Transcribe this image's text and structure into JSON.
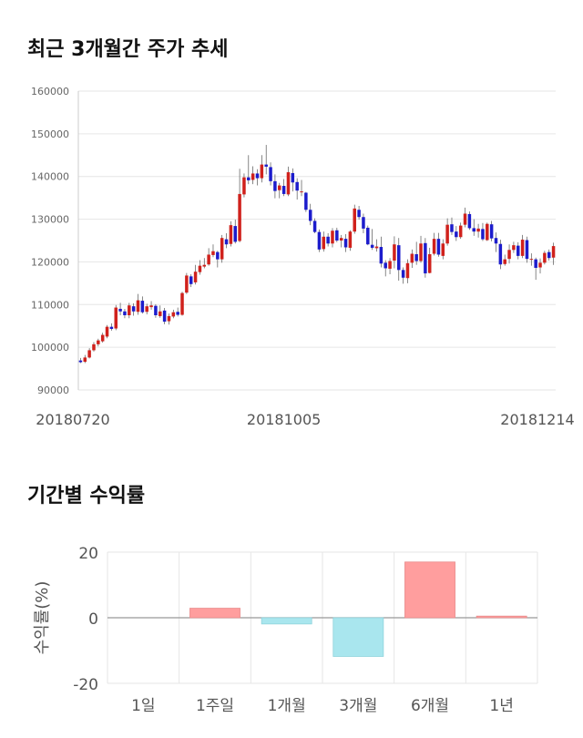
{
  "section1_title": "최근 3개월간 주가 추세",
  "section2_title": "기간별 수익률",
  "colors": {
    "up": "#d0211c",
    "down": "#1c1ccc",
    "bar_pos": "#ff9e9e",
    "bar_neg": "#a9e6ee",
    "grid": "#e6e6e6"
  },
  "chart_data": [
    {
      "type": "candlestick",
      "title": "최근 3개월간 주가 추세",
      "ylim": [
        90000,
        160000
      ],
      "y_ticks": [
        "160000",
        "150000",
        "140000",
        "130000",
        "120000",
        "110000",
        "100000",
        "90000"
      ],
      "x_tick_labels": [
        "20180720",
        "20181005",
        "20181214"
      ],
      "grid": true,
      "candles": [
        [
          96900,
          96500,
          97500,
          96300
        ],
        [
          96600,
          97600,
          98200,
          96300
        ],
        [
          97600,
          99300,
          99800,
          97400
        ],
        [
          99300,
          100700,
          101200,
          99000
        ],
        [
          100700,
          101600,
          102000,
          100200
        ],
        [
          101400,
          102900,
          103400,
          101100
        ],
        [
          102500,
          104800,
          105200,
          102100
        ],
        [
          104800,
          104300,
          105600,
          103900
        ],
        [
          104400,
          109300,
          109900,
          104000
        ],
        [
          109000,
          108400,
          110400,
          107500
        ],
        [
          108400,
          107500,
          109000,
          106800
        ],
        [
          107500,
          109800,
          110400,
          106800
        ],
        [
          109600,
          108400,
          110300,
          107400
        ],
        [
          108300,
          111000,
          112500,
          107600
        ],
        [
          110900,
          108200,
          111900,
          107900
        ],
        [
          108300,
          109600,
          110200,
          107700
        ],
        [
          109400,
          109800,
          110800,
          108800
        ],
        [
          109700,
          107500,
          110100,
          106900
        ],
        [
          107300,
          108400,
          109800,
          106900
        ],
        [
          108600,
          106000,
          109200,
          105400
        ],
        [
          106100,
          107300,
          107900,
          105300
        ],
        [
          107200,
          108200,
          108800,
          106800
        ],
        [
          108300,
          107600,
          109300,
          107200
        ],
        [
          107600,
          112700,
          113000,
          107400
        ],
        [
          112800,
          116800,
          117400,
          112500
        ],
        [
          116600,
          114800,
          117100,
          114100
        ],
        [
          115200,
          117700,
          119300,
          114700
        ],
        [
          117600,
          119100,
          120400,
          117000
        ],
        [
          118900,
          119300,
          120900,
          118500
        ],
        [
          119400,
          121700,
          123200,
          119100
        ],
        [
          121600,
          122500,
          124100,
          121100
        ],
        [
          122300,
          120600,
          122600,
          118700
        ],
        [
          120600,
          125600,
          126300,
          119800
        ],
        [
          125300,
          124100,
          126700,
          123200
        ],
        [
          124200,
          128600,
          129500,
          123600
        ],
        [
          128400,
          124700,
          129900,
          124300
        ],
        [
          124900,
          135900,
          141800,
          124600
        ],
        [
          135800,
          139800,
          140700,
          135100
        ],
        [
          139800,
          139100,
          145000,
          138200
        ],
        [
          139200,
          140700,
          142400,
          138200
        ],
        [
          140700,
          139600,
          141700,
          137900
        ],
        [
          139600,
          142800,
          145000,
          138600
        ],
        [
          142800,
          142300,
          147400,
          140500
        ],
        [
          142200,
          138900,
          143300,
          137900
        ],
        [
          138900,
          136600,
          140500,
          134900
        ],
        [
          136800,
          137900,
          138500,
          134900
        ],
        [
          137800,
          135900,
          139400,
          135400
        ],
        [
          135800,
          141000,
          142300,
          135400
        ],
        [
          140800,
          138600,
          141900,
          136500
        ],
        [
          138700,
          136700,
          139600,
          134600
        ],
        [
          136400,
          136500,
          139200,
          135400
        ],
        [
          136200,
          132200,
          136400,
          131700
        ],
        [
          132200,
          129600,
          133600,
          128600
        ],
        [
          129600,
          127000,
          130200,
          126700
        ],
        [
          127000,
          122900,
          127600,
          122300
        ],
        [
          123000,
          125900,
          127100,
          122400
        ],
        [
          125900,
          124300,
          126700,
          123600
        ],
        [
          124300,
          127300,
          127900,
          123400
        ],
        [
          127400,
          125000,
          128000,
          124600
        ],
        [
          125000,
          125600,
          126300,
          123400
        ],
        [
          125400,
          123400,
          126500,
          122300
        ],
        [
          123300,
          127100,
          127400,
          122600
        ],
        [
          127100,
          132500,
          133400,
          126600
        ],
        [
          132200,
          130500,
          133100,
          129900
        ],
        [
          130500,
          127800,
          131300,
          126700
        ],
        [
          128000,
          124100,
          128500,
          123900
        ],
        [
          124000,
          123300,
          127700,
          122800
        ],
        [
          123200,
          123600,
          125300,
          122400
        ],
        [
          123500,
          119600,
          125900,
          118700
        ],
        [
          119800,
          118500,
          120400,
          116600
        ],
        [
          118400,
          120200,
          120900,
          117100
        ],
        [
          120300,
          124100,
          126000,
          118500
        ],
        [
          123900,
          118100,
          125600,
          115600
        ],
        [
          118100,
          116300,
          118700,
          114900
        ],
        [
          116200,
          119700,
          120600,
          115000
        ],
        [
          119800,
          121900,
          122900,
          118600
        ],
        [
          121800,
          120200,
          124700,
          119300
        ],
        [
          120200,
          124300,
          126100,
          119800
        ],
        [
          124400,
          117300,
          125600,
          116300
        ],
        [
          117400,
          121800,
          123300,
          117300
        ],
        [
          121900,
          125400,
          126800,
          121500
        ],
        [
          125400,
          121700,
          126800,
          121200
        ],
        [
          121400,
          124300,
          125300,
          120600
        ],
        [
          124300,
          128700,
          130200,
          123800
        ],
        [
          128800,
          127000,
          130400,
          126300
        ],
        [
          127100,
          125800,
          128400,
          124900
        ],
        [
          125800,
          128500,
          129200,
          125400
        ],
        [
          128700,
          131300,
          132700,
          128100
        ],
        [
          131200,
          127900,
          131800,
          127500
        ],
        [
          127900,
          127100,
          130000,
          126100
        ],
        [
          127100,
          127800,
          128900,
          125700
        ],
        [
          127700,
          125300,
          129100,
          124900
        ],
        [
          125100,
          128900,
          129200,
          124900
        ],
        [
          128800,
          125500,
          129600,
          124800
        ],
        [
          125600,
          124300,
          126900,
          122300
        ],
        [
          124200,
          119400,
          125200,
          118300
        ],
        [
          119500,
          120600,
          121700,
          119100
        ],
        [
          120700,
          122800,
          124100,
          119600
        ],
        [
          122800,
          123900,
          124700,
          122100
        ],
        [
          123800,
          121400,
          124600,
          120600
        ],
        [
          121400,
          125200,
          126300,
          120900
        ],
        [
          125100,
          120700,
          125900,
          119800
        ],
        [
          120700,
          120700,
          122000,
          119100
        ],
        [
          120600,
          118600,
          121000,
          115800
        ],
        [
          118700,
          119800,
          120800,
          117300
        ],
        [
          119800,
          122100,
          122600,
          119400
        ],
        [
          122300,
          120900,
          122900,
          120300
        ],
        [
          121000,
          123700,
          124500,
          119300
        ]
      ]
    },
    {
      "type": "bar",
      "title": "기간별 수익률",
      "ylabel": "수익률(%)",
      "categories": [
        "1일",
        "1주일",
        "1개월",
        "3개월",
        "6개월",
        "1년"
      ],
      "values": [
        0.0,
        2.9,
        -1.9,
        -11.8,
        17.0,
        0.5
      ],
      "ylim": [
        -20,
        20
      ],
      "y_ticks": [
        "20",
        "0",
        "-20"
      ],
      "grid": true
    }
  ]
}
